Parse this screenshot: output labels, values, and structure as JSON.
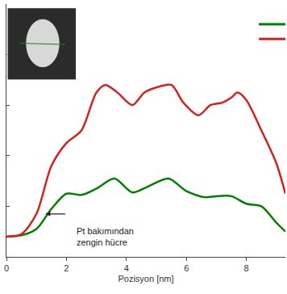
{
  "chart_data": {
    "type": "line",
    "xlabel": "Pozisyon [nm]",
    "xlim": [
      0,
      9.3
    ],
    "xticks": [
      0,
      2,
      4,
      6,
      8
    ],
    "ylim": [
      0,
      100
    ],
    "yticks": [
      0,
      20,
      40,
      60,
      80,
      100
    ],
    "tick_labels": "x",
    "grid": false,
    "series": [
      {
        "color": "#008000",
        "x": [
          0,
          0.5,
          1,
          1.5,
          2,
          2.5,
          3,
          3.6,
          4.2,
          4.7,
          5.4,
          6,
          6.6,
          7,
          7.5,
          8,
          8.5,
          9,
          9.3
        ],
        "values": [
          8,
          8.5,
          11,
          19,
          25,
          24.5,
          27,
          31,
          25.5,
          27.7,
          31,
          26,
          23.6,
          24,
          24,
          21,
          20,
          13.5,
          10
        ]
      },
      {
        "color": "#d62020",
        "x": [
          0,
          0.5,
          1,
          1.5,
          2,
          2.5,
          3,
          3.3,
          3.7,
          4.2,
          4.6,
          5,
          5.5,
          5.9,
          6.4,
          6.8,
          7.2,
          7.5,
          7.7,
          8,
          8.5,
          9,
          9.3
        ],
        "values": [
          8,
          9,
          17,
          36,
          45,
          50,
          65,
          68,
          65,
          60,
          65,
          67,
          68,
          61,
          56,
          60,
          61,
          63,
          65,
          62,
          50,
          37,
          25
        ]
      }
    ],
    "annotations": [
      {
        "lines": [
          "Pt bakımından",
          "zengin hücre"
        ],
        "x": 3.3,
        "y": 8,
        "arrow_x": 1.3,
        "arrow_y": 17,
        "arrow_from_x": 2.0
      }
    ]
  }
}
